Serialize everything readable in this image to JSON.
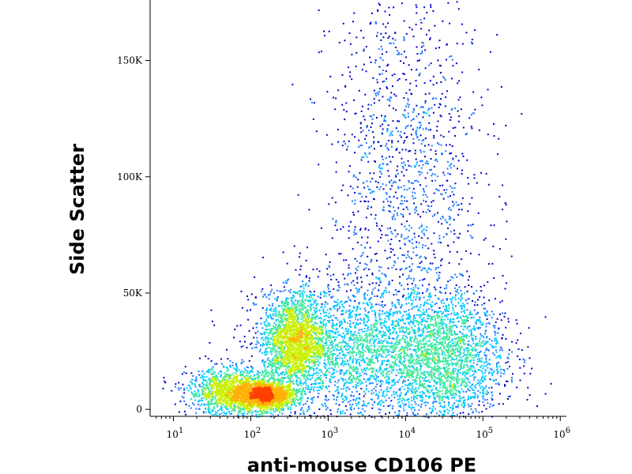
{
  "chart_data": {
    "type": "scatter",
    "subtype": "density-dot-plot",
    "title": "",
    "xlabel": "anti-mouse CD106 PE",
    "ylabel": "Side Scatter",
    "x_scale": "log",
    "xlim": [
      5,
      1200000
    ],
    "ylim": [
      -3000,
      176000
    ],
    "x_ticks": [
      {
        "value": 10,
        "base": "10",
        "exp": "1"
      },
      {
        "value": 100,
        "base": "10",
        "exp": "2"
      },
      {
        "value": 1000,
        "base": "10",
        "exp": "3"
      },
      {
        "value": 10000,
        "base": "10",
        "exp": "4"
      },
      {
        "value": 100000,
        "base": "10",
        "exp": "5"
      },
      {
        "value": 1000000,
        "base": "10",
        "exp": "6"
      }
    ],
    "y_ticks": [
      {
        "value": 0,
        "label": "0"
      },
      {
        "value": 50000,
        "label": "50K"
      },
      {
        "value": 100000,
        "label": "100K"
      },
      {
        "value": 150000,
        "label": "150K"
      }
    ],
    "grid": false,
    "legend": "none",
    "color_scale": [
      "#0000c8",
      "#1e78ff",
      "#00c8ff",
      "#40e8a0",
      "#c8f000",
      "#ffb000",
      "#ff4000",
      "#d80000"
    ],
    "populations": [
      {
        "x_center": 150,
        "y_center": 6000,
        "x_spread_decades": 0.2,
        "y_spread": 3000,
        "density": "peak"
      },
      {
        "x_center": 350,
        "y_center": 30000,
        "x_spread_decades": 0.2,
        "y_spread": 10000,
        "density": "high"
      },
      {
        "x_center": 2000,
        "y_center": 25000,
        "x_spread_decades": 0.6,
        "y_spread": 15000,
        "density": "medium"
      },
      {
        "x_center": 30000,
        "y_center": 22000,
        "x_spread_decades": 0.4,
        "y_spread": 15000,
        "density": "medium"
      },
      {
        "x_center": 10000,
        "y_center": 100000,
        "x_spread_decades": 0.5,
        "y_spread": 45000,
        "density": "low"
      },
      {
        "x_center": 60,
        "y_center": 8000,
        "x_spread_decades": 0.3,
        "y_spread": 5000,
        "density": "low"
      }
    ]
  }
}
